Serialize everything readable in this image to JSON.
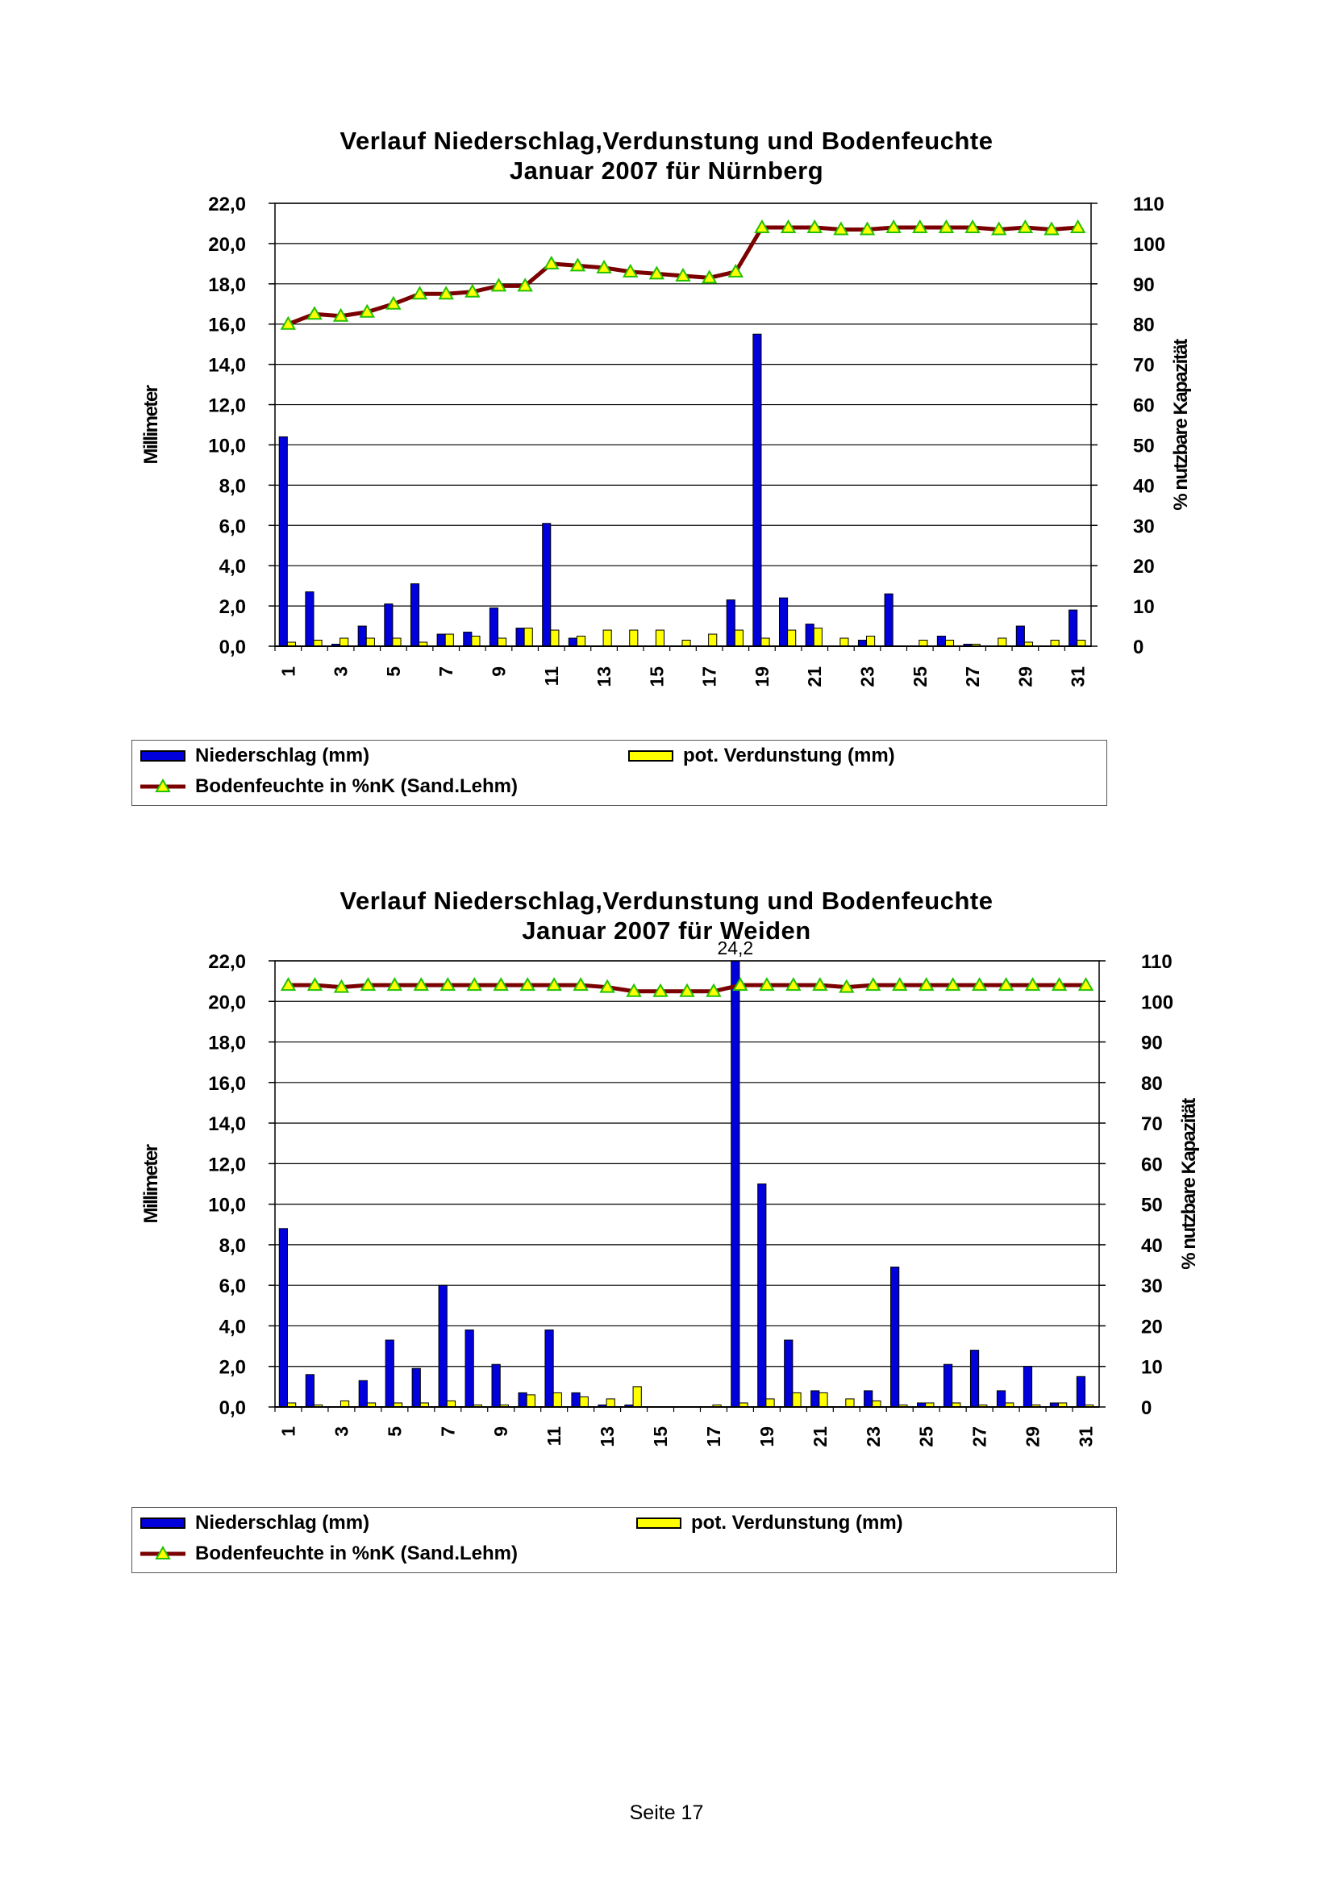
{
  "page": {
    "footer": "Seite 17"
  },
  "legend": {
    "niederschlag": "Niederschlag (mm)",
    "verdunstung": "pot. Verdunstung (mm)",
    "bodenfeuchte": "Bodenfeuchte in %nK (Sand.Lehm)"
  },
  "colors": {
    "precip_fill": "#0000dd",
    "evap_fill": "#ffff00",
    "soil_line": "#7b0000",
    "soil_marker": "#22c000",
    "marker_fill": "#ffff00"
  },
  "chart_data": [
    {
      "type": "bar",
      "title": "Verlauf Niederschlag,Verdunstung und Bodenfeuchte",
      "subtitle": "Januar 2007 für Nürnberg",
      "ylabel": "Millimeter",
      "y2label": "% nutzbare Kapazität",
      "ylim": [
        0,
        22
      ],
      "y2lim": [
        0,
        110
      ],
      "yticks": [
        "0,0",
        "2,0",
        "4,0",
        "6,0",
        "8,0",
        "10,0",
        "12,0",
        "14,0",
        "16,0",
        "18,0",
        "20,0",
        "22,0"
      ],
      "y2ticks": [
        "0",
        "10",
        "20",
        "30",
        "40",
        "50",
        "60",
        "70",
        "80",
        "90",
        "100",
        "110"
      ],
      "xticks": [
        "1",
        "3",
        "5",
        "7",
        "9",
        "11",
        "13",
        "15",
        "17",
        "19",
        "21",
        "23",
        "25",
        "27",
        "29",
        "31"
      ],
      "days": [
        1,
        2,
        3,
        4,
        5,
        6,
        7,
        8,
        9,
        10,
        11,
        12,
        13,
        14,
        15,
        16,
        17,
        18,
        19,
        20,
        21,
        22,
        23,
        24,
        25,
        26,
        27,
        28,
        29,
        30,
        31
      ],
      "series": [
        {
          "name": "Niederschlag (mm)",
          "kind": "bar",
          "values": [
            10.4,
            2.7,
            0.1,
            1.0,
            2.1,
            3.1,
            0.6,
            0.7,
            1.9,
            0.9,
            6.1,
            0.4,
            0,
            0,
            0,
            0,
            0,
            2.3,
            15.5,
            2.4,
            1.1,
            0,
            0.3,
            2.6,
            0,
            0.5,
            0.1,
            0,
            1.0,
            0,
            1.8
          ]
        },
        {
          "name": "pot. Verdunstung (mm)",
          "kind": "bar",
          "values": [
            0.2,
            0.3,
            0.4,
            0.4,
            0.4,
            0.2,
            0.6,
            0.5,
            0.4,
            0.9,
            0.8,
            0.5,
            0.8,
            0.8,
            0.8,
            0.3,
            0.6,
            0.8,
            0.4,
            0.8,
            0.9,
            0.4,
            0.5,
            0,
            0.3,
            0.3,
            0.1,
            0.4,
            0.2,
            0.3,
            0.3
          ]
        },
        {
          "name": "Bodenfeuchte in %nK (Sand.Lehm)",
          "kind": "line",
          "axis": "right",
          "values": [
            80,
            82.5,
            82,
            83,
            85,
            87.5,
            87.5,
            88,
            89.5,
            89.5,
            95,
            94.5,
            94,
            93,
            92.5,
            92,
            91.5,
            93,
            104,
            104,
            104,
            103.5,
            103.5,
            104,
            104,
            104,
            104,
            103.5,
            104,
            103.5,
            104
          ]
        }
      ],
      "annotation": ""
    },
    {
      "type": "bar",
      "title": "Verlauf Niederschlag,Verdunstung und Bodenfeuchte",
      "subtitle": "Januar 2007 für Weiden",
      "ylabel": "Millimeter",
      "y2label": "% nutzbare Kapazität",
      "ylim": [
        0,
        22
      ],
      "y2lim": [
        0,
        110
      ],
      "yticks": [
        "0,0",
        "2,0",
        "4,0",
        "6,0",
        "8,0",
        "10,0",
        "12,0",
        "14,0",
        "16,0",
        "18,0",
        "20,0",
        "22,0"
      ],
      "y2ticks": [
        "0",
        "10",
        "20",
        "30",
        "40",
        "50",
        "60",
        "70",
        "80",
        "90",
        "100",
        "110"
      ],
      "xticks": [
        "1",
        "3",
        "5",
        "7",
        "9",
        "11",
        "13",
        "15",
        "17",
        "19",
        "21",
        "23",
        "25",
        "27",
        "29",
        "31"
      ],
      "days": [
        1,
        2,
        3,
        4,
        5,
        6,
        7,
        8,
        9,
        10,
        11,
        12,
        13,
        14,
        15,
        16,
        17,
        18,
        19,
        20,
        21,
        22,
        23,
        24,
        25,
        26,
        27,
        28,
        29,
        30,
        31
      ],
      "series": [
        {
          "name": "Niederschlag (mm)",
          "kind": "bar",
          "values": [
            8.8,
            1.6,
            0,
            1.3,
            3.3,
            1.9,
            6.0,
            3.8,
            2.1,
            0.7,
            3.8,
            0.7,
            0.1,
            0.1,
            0,
            0,
            0,
            24.2,
            11.0,
            3.3,
            0.8,
            0,
            0.8,
            6.9,
            0.2,
            2.1,
            2.8,
            0.8,
            2.0,
            0.2,
            1.5
          ]
        },
        {
          "name": "pot. Verdunstung (mm)",
          "kind": "bar",
          "values": [
            0.2,
            0.1,
            0.3,
            0.2,
            0.2,
            0.2,
            0.3,
            0.1,
            0.1,
            0.6,
            0.7,
            0.5,
            0.4,
            1.0,
            0,
            0,
            0.1,
            0.2,
            0.4,
            0.7,
            0.7,
            0.4,
            0.3,
            0.1,
            0.2,
            0.2,
            0.1,
            0.2,
            0.1,
            0.2,
            0.1
          ]
        },
        {
          "name": "Bodenfeuchte in %nK (Sand.Lehm)",
          "kind": "line",
          "axis": "right",
          "values": [
            104,
            104,
            103.5,
            104,
            104,
            104,
            104,
            104,
            104,
            104,
            104,
            104,
            103.5,
            102.5,
            102.5,
            102.5,
            102.5,
            104,
            104,
            104,
            104,
            103.5,
            104,
            104,
            104,
            104,
            104,
            104,
            104,
            104,
            104
          ]
        }
      ],
      "annotation": "24,2"
    }
  ]
}
